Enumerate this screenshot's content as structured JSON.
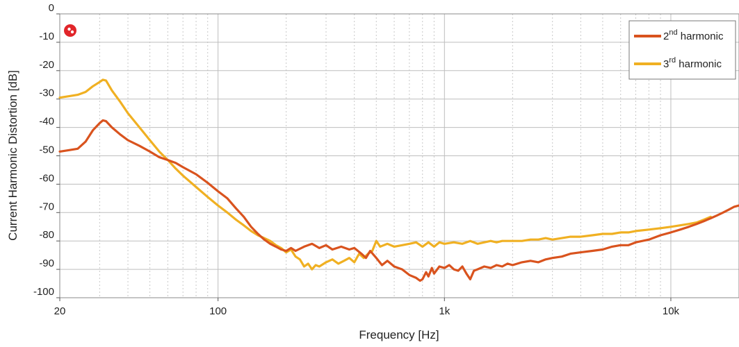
{
  "chart_data": {
    "type": "line",
    "xlabel": "Frequency [Hz]",
    "ylabel": "Current Harmonic Distortion [dB]",
    "xscale": "log",
    "xlim": [
      20,
      20000
    ],
    "ylim": [
      -100,
      0
    ],
    "grid": true,
    "legend_position": "top-right",
    "x_ticks": [
      {
        "value": 20,
        "label": "20"
      },
      {
        "value": 100,
        "label": "100"
      },
      {
        "value": 1000,
        "label": "1k"
      },
      {
        "value": 10000,
        "label": "10k"
      }
    ],
    "y_ticks": [
      {
        "value": 0,
        "label": "0"
      },
      {
        "value": -10,
        "label": "-10"
      },
      {
        "value": -20,
        "label": "-20"
      },
      {
        "value": -30,
        "label": "-30"
      },
      {
        "value": -40,
        "label": "-40"
      },
      {
        "value": -50,
        "label": "-50"
      },
      {
        "value": -60,
        "label": "-60"
      },
      {
        "value": -70,
        "label": "-70"
      },
      {
        "value": -80,
        "label": "-80"
      },
      {
        "value": -90,
        "label": "-90"
      },
      {
        "value": -100,
        "label": "-100"
      }
    ],
    "series": [
      {
        "name": "2nd harmonic",
        "label_base": "2",
        "label_sup": "nd",
        "label_rest": " harmonic",
        "color": "#d9531e",
        "points": [
          [
            20,
            -48.5
          ],
          [
            22,
            -48
          ],
          [
            24,
            -47.5
          ],
          [
            26,
            -45
          ],
          [
            28,
            -41
          ],
          [
            30,
            -38.5
          ],
          [
            31,
            -37.5
          ],
          [
            32,
            -37.8
          ],
          [
            34,
            -40
          ],
          [
            37,
            -42.5
          ],
          [
            40,
            -44.5
          ],
          [
            45,
            -46.5
          ],
          [
            50,
            -48.5
          ],
          [
            55,
            -50.5
          ],
          [
            60,
            -51.5
          ],
          [
            65,
            -52.5
          ],
          [
            70,
            -54
          ],
          [
            80,
            -56.5
          ],
          [
            90,
            -59.5
          ],
          [
            100,
            -62.5
          ],
          [
            110,
            -65
          ],
          [
            120,
            -68.5
          ],
          [
            130,
            -71.5
          ],
          [
            140,
            -75
          ],
          [
            150,
            -77.5
          ],
          [
            160,
            -79.5
          ],
          [
            170,
            -81
          ],
          [
            180,
            -82
          ],
          [
            190,
            -83
          ],
          [
            200,
            -83.5
          ],
          [
            210,
            -82.5
          ],
          [
            220,
            -83.5
          ],
          [
            240,
            -82
          ],
          [
            260,
            -81
          ],
          [
            280,
            -82.5
          ],
          [
            300,
            -81.5
          ],
          [
            320,
            -83
          ],
          [
            350,
            -82
          ],
          [
            380,
            -83
          ],
          [
            400,
            -82.5
          ],
          [
            430,
            -84.5
          ],
          [
            450,
            -86
          ],
          [
            470,
            -83.5
          ],
          [
            500,
            -86
          ],
          [
            530,
            -88.5
          ],
          [
            560,
            -87
          ],
          [
            600,
            -89
          ],
          [
            650,
            -90
          ],
          [
            700,
            -92
          ],
          [
            750,
            -93
          ],
          [
            780,
            -94
          ],
          [
            800,
            -93.5
          ],
          [
            830,
            -91
          ],
          [
            850,
            -92.5
          ],
          [
            880,
            -89.5
          ],
          [
            900,
            -91.5
          ],
          [
            950,
            -89
          ],
          [
            1000,
            -89.5
          ],
          [
            1050,
            -88.5
          ],
          [
            1100,
            -90
          ],
          [
            1150,
            -90.5
          ],
          [
            1200,
            -89
          ],
          [
            1250,
            -91.5
          ],
          [
            1300,
            -93.5
          ],
          [
            1350,
            -90.5
          ],
          [
            1400,
            -90
          ],
          [
            1500,
            -89
          ],
          [
            1600,
            -89.5
          ],
          [
            1700,
            -88.5
          ],
          [
            1800,
            -89
          ],
          [
            1900,
            -88
          ],
          [
            2000,
            -88.5
          ],
          [
            2200,
            -87.5
          ],
          [
            2400,
            -87
          ],
          [
            2600,
            -87.5
          ],
          [
            2800,
            -86.5
          ],
          [
            3000,
            -86
          ],
          [
            3300,
            -85.5
          ],
          [
            3600,
            -84.5
          ],
          [
            4000,
            -84
          ],
          [
            4500,
            -83.5
          ],
          [
            5000,
            -83
          ],
          [
            5500,
            -82
          ],
          [
            6000,
            -81.5
          ],
          [
            6500,
            -81.5
          ],
          [
            7000,
            -80.5
          ],
          [
            8000,
            -79.5
          ],
          [
            9000,
            -78
          ],
          [
            10000,
            -77
          ],
          [
            11000,
            -76
          ],
          [
            12000,
            -75
          ],
          [
            13000,
            -74
          ],
          [
            14000,
            -73
          ],
          [
            15000,
            -72
          ],
          [
            16000,
            -71
          ],
          [
            17000,
            -70
          ],
          [
            18000,
            -69
          ],
          [
            19000,
            -68
          ],
          [
            20000,
            -67.5
          ]
        ]
      },
      {
        "name": "3rd harmonic",
        "label_base": "3",
        "label_sup": "rd",
        "label_rest": " harmonic",
        "color": "#f0b022",
        "points": [
          [
            20,
            -29.5
          ],
          [
            22,
            -29
          ],
          [
            24,
            -28.5
          ],
          [
            26,
            -27.5
          ],
          [
            28,
            -25.5
          ],
          [
            30,
            -24
          ],
          [
            31,
            -23.2
          ],
          [
            32,
            -23.5
          ],
          [
            34,
            -27
          ],
          [
            37,
            -31
          ],
          [
            40,
            -35
          ],
          [
            45,
            -40
          ],
          [
            50,
            -44.5
          ],
          [
            55,
            -48.5
          ],
          [
            60,
            -51.5
          ],
          [
            65,
            -54.5
          ],
          [
            70,
            -57
          ],
          [
            80,
            -61
          ],
          [
            90,
            -64.5
          ],
          [
            100,
            -67.5
          ],
          [
            110,
            -70
          ],
          [
            120,
            -72.5
          ],
          [
            130,
            -74.5
          ],
          [
            140,
            -76.5
          ],
          [
            150,
            -78
          ],
          [
            160,
            -79
          ],
          [
            170,
            -80
          ],
          [
            180,
            -81.5
          ],
          [
            190,
            -82.5
          ],
          [
            200,
            -84
          ],
          [
            210,
            -83
          ],
          [
            220,
            -85.5
          ],
          [
            230,
            -86.5
          ],
          [
            240,
            -89
          ],
          [
            250,
            -88
          ],
          [
            260,
            -90
          ],
          [
            270,
            -88.5
          ],
          [
            280,
            -89
          ],
          [
            300,
            -87.5
          ],
          [
            320,
            -86.5
          ],
          [
            340,
            -88
          ],
          [
            360,
            -87
          ],
          [
            380,
            -86
          ],
          [
            400,
            -87.5
          ],
          [
            420,
            -84.5
          ],
          [
            440,
            -86
          ],
          [
            460,
            -84.5
          ],
          [
            480,
            -83.5
          ],
          [
            500,
            -80
          ],
          [
            520,
            -82
          ],
          [
            540,
            -81.5
          ],
          [
            560,
            -81
          ],
          [
            600,
            -82
          ],
          [
            650,
            -81.5
          ],
          [
            700,
            -81
          ],
          [
            750,
            -80.5
          ],
          [
            800,
            -82
          ],
          [
            850,
            -80.5
          ],
          [
            900,
            -82
          ],
          [
            950,
            -80.5
          ],
          [
            1000,
            -81
          ],
          [
            1100,
            -80.5
          ],
          [
            1200,
            -81
          ],
          [
            1300,
            -80
          ],
          [
            1400,
            -81
          ],
          [
            1500,
            -80.5
          ],
          [
            1600,
            -80
          ],
          [
            1700,
            -80.5
          ],
          [
            1800,
            -80
          ],
          [
            2000,
            -80
          ],
          [
            2200,
            -80
          ],
          [
            2400,
            -79.5
          ],
          [
            2600,
            -79.5
          ],
          [
            2800,
            -79
          ],
          [
            3000,
            -79.5
          ],
          [
            3300,
            -79
          ],
          [
            3600,
            -78.5
          ],
          [
            4000,
            -78.5
          ],
          [
            4500,
            -78
          ],
          [
            5000,
            -77.5
          ],
          [
            5500,
            -77.5
          ],
          [
            6000,
            -77
          ],
          [
            6500,
            -77
          ],
          [
            7000,
            -76.5
          ],
          [
            8000,
            -76
          ],
          [
            9000,
            -75.5
          ],
          [
            10000,
            -75
          ],
          [
            11000,
            -74.5
          ],
          [
            12000,
            -74
          ],
          [
            13000,
            -73.5
          ],
          [
            14000,
            -72.5
          ],
          [
            15000,
            -71.5
          ]
        ]
      }
    ]
  }
}
